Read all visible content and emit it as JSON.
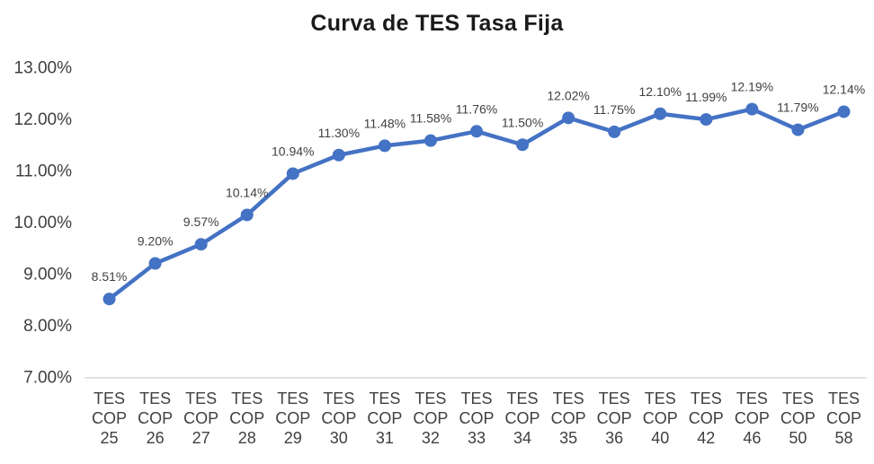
{
  "chart_data": {
    "type": "line",
    "title": "Curva de TES Tasa Fija",
    "categories": [
      "TES COP 25",
      "TES COP 26",
      "TES COP 27",
      "TES COP 28",
      "TES COP 29",
      "TES COP 30",
      "TES COP 31",
      "TES COP 32",
      "TES COP 33",
      "TES COP 34",
      "TES COP 35",
      "TES COP 36",
      "TES COP 40",
      "TES COP 42",
      "TES COP 46",
      "TES COP 50",
      "TES COP 58"
    ],
    "values": [
      8.51,
      9.2,
      9.57,
      10.14,
      10.94,
      11.3,
      11.48,
      11.58,
      11.76,
      11.5,
      12.02,
      11.75,
      12.1,
      11.99,
      12.19,
      11.79,
      12.14
    ],
    "data_labels": [
      "8.51%",
      "9.20%",
      "9.57%",
      "10.14%",
      "10.94%",
      "11.30%",
      "11.48%",
      "11.58%",
      "11.76%",
      "11.50%",
      "12.02%",
      "11.75%",
      "12.10%",
      "11.99%",
      "12.19%",
      "11.79%",
      "12.14%"
    ],
    "ylim": [
      7,
      13
    ],
    "y_tick_step": 1,
    "y_tick_labels": [
      "7.00%",
      "8.00%",
      "9.00%",
      "10.00%",
      "11.00%",
      "12.00%",
      "13.00%"
    ],
    "grid": false,
    "legend": "none",
    "xlabel": "",
    "ylabel": "",
    "series_color": "#4472C4",
    "axis_line_color": "#D9D9D9",
    "label_color": "#404040",
    "title_color": "#1A1A1A"
  }
}
